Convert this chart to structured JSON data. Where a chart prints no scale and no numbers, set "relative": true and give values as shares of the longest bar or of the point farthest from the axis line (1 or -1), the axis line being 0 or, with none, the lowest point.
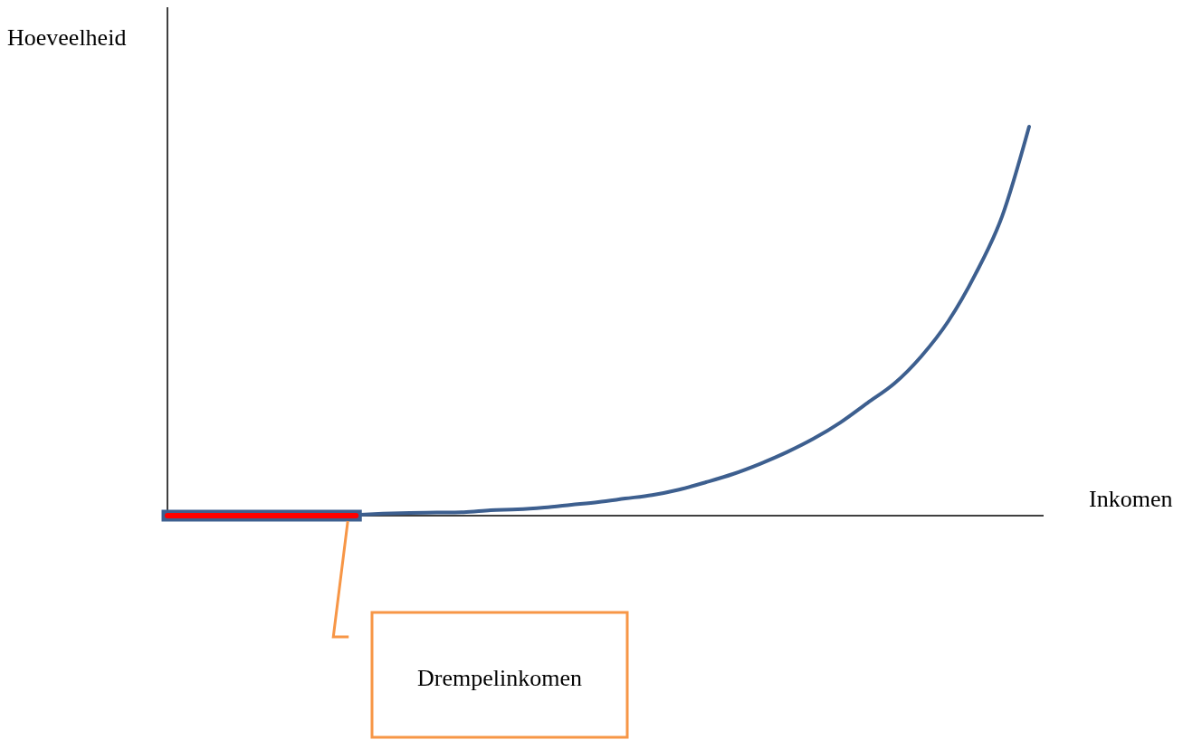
{
  "chart_data": {
    "type": "line",
    "relative": true,
    "xlabel": "Inkomen",
    "ylabel": "Hoeveelheid",
    "categories": [
      null,
      null,
      null,
      null,
      null,
      null,
      null,
      null,
      null,
      null,
      null,
      null,
      null,
      null,
      null,
      null,
      null,
      null,
      null,
      null,
      null,
      null,
      null,
      null,
      null,
      null,
      null,
      null,
      null,
      null,
      null,
      null,
      null
    ],
    "series": [
      {
        "color": "#3d5f8f",
        "values": [
          null,
          null,
          null,
          null,
          null,
          null,
          null,
          0.002,
          0.005,
          0.007,
          0.008,
          0.009,
          0.014,
          0.016,
          0.021,
          0.028,
          0.035,
          0.044,
          0.053,
          0.067,
          0.086,
          0.107,
          0.133,
          0.163,
          0.198,
          0.24,
          0.29,
          0.34,
          0.41,
          0.5,
          0.62,
          0.77,
          1
        ]
      },
      {
        "color": "#ff0000",
        "values": [
          0,
          0,
          0,
          0,
          0,
          0,
          0,
          0,
          null,
          null,
          null,
          null,
          null,
          null,
          null,
          null,
          null,
          null,
          null,
          null,
          null,
          null,
          null,
          null,
          null,
          null,
          null,
          null,
          null,
          null,
          null,
          null,
          null
        ]
      }
    ],
    "annotations": [
      "Drempelinkomen"
    ]
  }
}
